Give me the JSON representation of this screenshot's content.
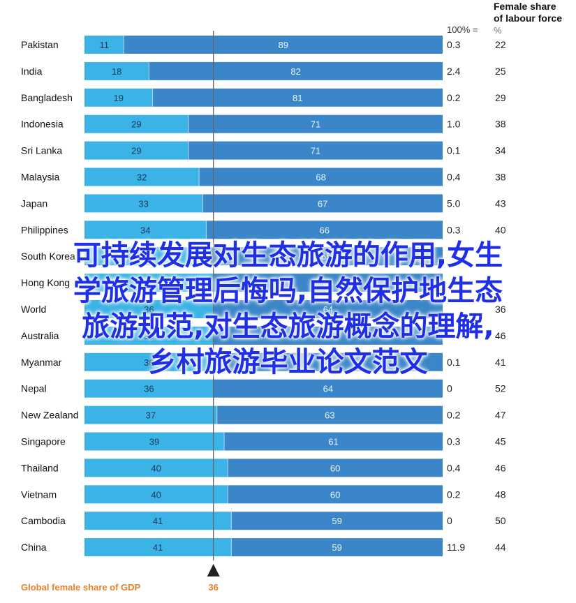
{
  "chart_data": {
    "type": "bar",
    "stacked": true,
    "orientation": "horizontal",
    "top_caption": "",
    "header": {
      "pct_label": "100% =",
      "col2_title_line1": "Female share",
      "col2_title_line2": "of labour force",
      "col2_unit": "%"
    },
    "categories": [
      "Pakistan",
      "India",
      "Bangladesh",
      "Indonesia",
      "Sri Lanka",
      "Malaysia",
      "Japan",
      "Philippines",
      "South Korea",
      "Hong Kong",
      "World",
      "Australia",
      "Myanmar",
      "Nepal",
      "New Zealand",
      "Singapore",
      "Thailand",
      "Vietnam",
      "Cambodia",
      "China"
    ],
    "series": [
      {
        "values": [
          11,
          18,
          19,
          29,
          29,
          32,
          33,
          34,
          35,
          36,
          36,
          36,
          36,
          36,
          37,
          39,
          40,
          40,
          41,
          41
        ]
      },
      {
        "values": [
          89,
          82,
          81,
          71,
          71,
          68,
          67,
          66,
          65,
          64,
          64,
          64,
          64,
          64,
          63,
          61,
          60,
          60,
          59,
          59
        ]
      }
    ],
    "gdp_totals": [
      "0.3",
      "2.4",
      "0.2",
      "1.0",
      "0.1",
      "0.4",
      "5.0",
      "0.3",
      "",
      "",
      "",
      "",
      "0.1",
      "0",
      "0.2",
      "0.3",
      "0.4",
      "0.2",
      "0",
      "11.9"
    ],
    "labour_share": [
      22,
      25,
      29,
      38,
      34,
      38,
      43,
      40,
      "",
      "",
      36,
      46,
      41,
      52,
      47,
      45,
      46,
      48,
      50,
      44
    ],
    "reference": {
      "label": "Global female share of GDP",
      "value": 36
    },
    "xlim": [
      0,
      100
    ],
    "colors": {
      "female": "#3bb3e6",
      "male": "#3a86c8",
      "reference": "#666666",
      "ref_label": "#e8822a",
      "row_label": "#111111"
    }
  },
  "overlay_text": [
    "可持续发展对生态旅游的作用,女生",
    "学旅游管理后悔吗,自然保护地生态",
    "旅游规范,对生态旅游概念的理解,",
    "乡村旅游毕业论文范文"
  ]
}
